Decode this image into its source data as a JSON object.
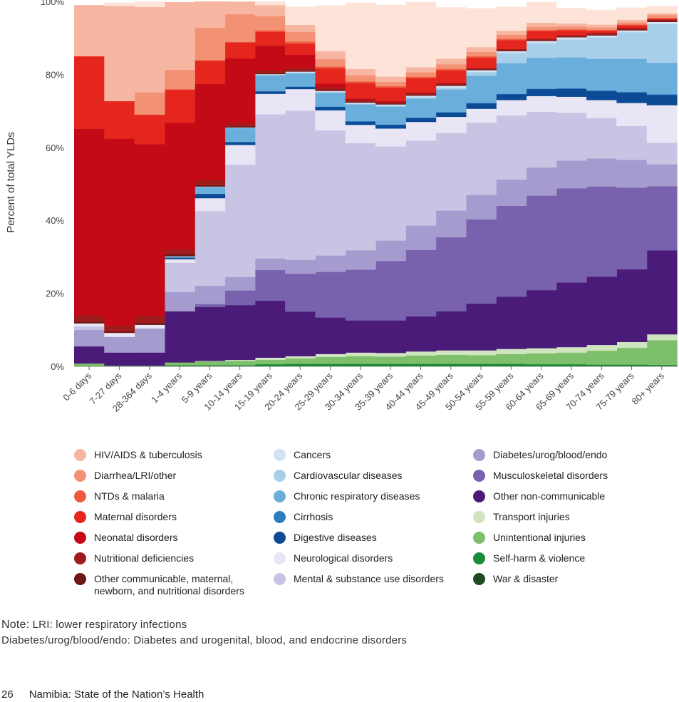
{
  "chart_data": {
    "type": "area",
    "ylabel": "Percent of total YLDs",
    "ylim": [
      0,
      100
    ],
    "yticks": [
      0,
      20,
      40,
      60,
      80,
      100
    ],
    "ytick_labels": [
      "0%",
      "20%",
      "40%",
      "60%",
      "80%",
      "100%"
    ],
    "categories": [
      "0-6 days",
      "7-27 days",
      "28-364 days",
      "1-4 years",
      "5-9 years",
      "10-14 years",
      "15-19 years",
      "20-24 years",
      "25-29 years",
      "30-34 years",
      "35-39 years",
      "40-44 years",
      "45-49 years",
      "50-54 years",
      "55-59 years",
      "60-64 years",
      "65-69 years",
      "70-74 years",
      "75-79 years",
      "80+ years"
    ],
    "series": [
      {
        "name": "War & disaster",
        "color": "#1e4a21",
        "values": [
          0.1,
          0.1,
          0.1,
          0.1,
          0.1,
          0.1,
          0.1,
          0.1,
          0.1,
          0.1,
          0.1,
          0.1,
          0.1,
          0.1,
          0.1,
          0.1,
          0.1,
          0.1,
          0.1,
          0.1
        ]
      },
      {
        "name": "Self-harm & violence",
        "color": "#1d8c3a",
        "values": [
          0,
          0,
          0,
          0.2,
          0.2,
          0.2,
          0.5,
          0.6,
          0.6,
          0.6,
          0.6,
          0.6,
          0.6,
          0.6,
          0.6,
          0.5,
          0.5,
          0.4,
          0.4,
          0.3
        ]
      },
      {
        "name": "Unintentional injuries",
        "color": "#7dbf6a",
        "values": [
          0.7,
          0.1,
          0.1,
          0.8,
          1.1,
          1.2,
          1.2,
          1.5,
          1.9,
          2.1,
          2.0,
          2.3,
          2.5,
          2.4,
          2.7,
          3.0,
          3.2,
          3.8,
          4.6,
          6.8
        ]
      },
      {
        "name": "Transport injuries",
        "color": "#cfe5c0",
        "values": [
          0,
          0,
          0,
          0,
          0.1,
          0.3,
          0.6,
          0.6,
          0.8,
          1.0,
          1.0,
          1.1,
          1.2,
          1.3,
          1.4,
          1.4,
          1.5,
          1.6,
          1.6,
          1.6
        ]
      },
      {
        "name": "Other non-communicable",
        "color": "#4b1b7a",
        "values": [
          4.7,
          3.6,
          3.6,
          14.0,
          14.8,
          15.0,
          15.6,
          12.2,
          10.0,
          8.8,
          8.9,
          9.6,
          10.7,
          12.8,
          14.3,
          15.9,
          17.7,
          18.7,
          19.9,
          23.0
        ]
      },
      {
        "name": "Musculoskeletal disorders",
        "color": "#7862ad",
        "values": [
          0,
          0,
          0,
          0,
          0.8,
          4.0,
          8.4,
          10.4,
          12.5,
          13.9,
          16.3,
          18.2,
          20.3,
          23.1,
          24.9,
          25.9,
          25.8,
          24.7,
          22.4,
          17.6
        ]
      },
      {
        "name": "Diabetes/urog/blood/endo",
        "color": "#a59bcf",
        "values": [
          4.5,
          4.3,
          6.6,
          5.3,
          5.0,
          3.7,
          3.2,
          3.8,
          4.5,
          5.3,
          5.6,
          6.7,
          7.3,
          6.7,
          7.2,
          7.7,
          7.6,
          7.7,
          7.6,
          6.0
        ]
      },
      {
        "name": "Mental & substance use disorders",
        "color": "#c8c4e4",
        "values": [
          1.0,
          0,
          0,
          8.0,
          20.5,
          30.8,
          39.5,
          40.9,
          34.3,
          29.4,
          25.8,
          23.3,
          21.3,
          19.8,
          17.6,
          15.3,
          13.1,
          11.1,
          9.3,
          5.9
        ]
      },
      {
        "name": "Neurological disorders",
        "color": "#e8e6f4",
        "values": [
          0.8,
          1.1,
          1.0,
          1.0,
          3.5,
          5.4,
          5.6,
          5.9,
          5.5,
          5.0,
          4.9,
          5.1,
          4.4,
          3.8,
          4.2,
          4.3,
          4.4,
          4.9,
          6.3,
          10.3
        ]
      },
      {
        "name": "Digestive diseases",
        "color": "#0d4a96",
        "values": [
          0,
          0,
          0,
          0.4,
          1.2,
          0.8,
          0.7,
          0.6,
          0.9,
          0.9,
          1.0,
          1.1,
          1.2,
          1.5,
          1.6,
          1.9,
          2.2,
          2.5,
          2.9,
          2.8
        ]
      },
      {
        "name": "Cirrhosis",
        "color": "#2a7ec0",
        "values": [
          0,
          0,
          0,
          0,
          0,
          0,
          0,
          0.1,
          0.1,
          0.1,
          0.1,
          0.1,
          0.1,
          0.1,
          0.1,
          0.1,
          0.1,
          0.1,
          0.1,
          0.2
        ]
      },
      {
        "name": "Chronic respiratory diseases",
        "color": "#6aaedb",
        "values": [
          0,
          0,
          0,
          0.3,
          1.9,
          3.9,
          4.4,
          3.6,
          3.8,
          4.6,
          4.9,
          5.2,
          6.2,
          7.5,
          8.4,
          8.5,
          8.5,
          8.7,
          9.1,
          8.6
        ]
      },
      {
        "name": "Cardiovascular diseases",
        "color": "#a7cfea",
        "values": [
          0,
          0,
          0,
          0,
          0,
          0,
          0.1,
          0.2,
          0.2,
          0.2,
          0.3,
          0.4,
          0.5,
          1.0,
          2.8,
          4.0,
          4.9,
          5.9,
          7.3,
          10.6
        ]
      },
      {
        "name": "Cancers",
        "color": "#d2e4f4",
        "values": [
          0,
          0,
          0,
          0.1,
          0.1,
          0.1,
          0.2,
          0.3,
          0.3,
          0.3,
          0.3,
          0.4,
          0.5,
          0.5,
          0.5,
          0.6,
          0.6,
          0.5,
          0.5,
          0.6
        ]
      },
      {
        "name": "Other communicable, maternal, newborn, and nutritional disorders",
        "color": "#6e1717",
        "values": [
          0.5,
          0.4,
          0.5,
          0.5,
          0.4,
          0.3,
          0.2,
          0.2,
          0.2,
          0.2,
          0.2,
          0.2,
          0.2,
          0.2,
          0.2,
          0.2,
          0.2,
          0.2,
          0.2,
          0.2
        ]
      },
      {
        "name": "Nutritional deficiencies",
        "color": "#a01c1c",
        "values": [
          1.7,
          1.6,
          2.0,
          1.4,
          1.4,
          0.8,
          0.8,
          0.8,
          0.8,
          0.6,
          0.5,
          0.5,
          0.5,
          0.4,
          0.4,
          0.4,
          0.4,
          0.5,
          0.5,
          0.5
        ]
      },
      {
        "name": "Neonatal disorders",
        "color": "#c40a17",
        "values": [
          51.1,
          51.2,
          47.0,
          34.7,
          26.3,
          17.8,
          6.8,
          3.6,
          1.0,
          0.3,
          0.2,
          0.2,
          0.1,
          0,
          0,
          0,
          0,
          0,
          0,
          0
        ]
      },
      {
        "name": "Maternal disorders",
        "color": "#e5261e",
        "values": [
          19.9,
          10.3,
          8.1,
          9.1,
          6.4,
          4.4,
          3.8,
          3.0,
          4.2,
          4.3,
          3.7,
          3.9,
          3.4,
          2.8,
          2.4,
          2.1,
          1.3,
          0.6,
          0.7,
          0.2
        ]
      },
      {
        "name": "NTDs & malaria",
        "color": "#ee5a3f",
        "values": [
          0,
          0,
          0,
          0,
          0.1,
          0.1,
          0.4,
          0.6,
          0.5,
          0.4,
          0.4,
          0.4,
          0.4,
          0.4,
          0.4,
          0.3,
          0.3,
          0.2,
          0.2,
          0.2
        ]
      },
      {
        "name": "Diarrhea/LRI/other",
        "color": "#f39174",
        "values": [
          0,
          0,
          6.1,
          5.4,
          8.9,
          7.6,
          3.9,
          2.7,
          2.0,
          1.7,
          1.2,
          1.2,
          1.3,
          1.2,
          1.1,
          0.9,
          0.8,
          0.7,
          0.6,
          0.8
        ]
      },
      {
        "name": "HIV/AIDS & tuberculosis",
        "color": "#f7b6a1",
        "values": [
          14.0,
          26.1,
          23.4,
          18.5,
          7.9,
          3.5,
          3.0,
          1.9,
          2.2,
          1.7,
          1.4,
          1.4,
          1.5,
          1.3,
          1.1,
          1.1,
          0.8,
          0.8,
          0.7,
          0.5
        ]
      },
      {
        "name": "HIV/AIDS & tuberculosis",
        "color": "#fde3d8",
        "values": [
          0,
          0.9,
          1.5,
          0,
          0,
          1.6,
          1.7,
          4.9,
          12.5,
          18.2,
          19.7,
          17.8,
          14.1,
          10.6,
          6.5,
          5.6,
          4.2,
          4.0,
          3.3,
          1.9
        ]
      }
    ]
  },
  "legend": [
    {
      "label": "HIV/AIDS & tuberculosis",
      "color": "#f7b6a1"
    },
    {
      "label": "Cancers",
      "color": "#d2e4f4"
    },
    {
      "label": "Diabetes/urog/blood/endo",
      "color": "#a59bcf"
    },
    {
      "label": "Diarrhea/LRI/other",
      "color": "#f39174"
    },
    {
      "label": "Cardiovascular diseases",
      "color": "#a7cfea"
    },
    {
      "label": "Musculoskeletal disorders",
      "color": "#7862ad"
    },
    {
      "label": "NTDs & malaria",
      "color": "#ee5a3f"
    },
    {
      "label": "Chronic respiratory diseases",
      "color": "#6aaedb"
    },
    {
      "label": "Other non-communicable",
      "color": "#4b1b7a"
    },
    {
      "label": "Maternal disorders",
      "color": "#e5261e"
    },
    {
      "label": "Cirrhosis",
      "color": "#2a7ec0"
    },
    {
      "label": "Transport injuries",
      "color": "#cfe5c0"
    },
    {
      "label": "Neonatal disorders",
      "color": "#c40a17"
    },
    {
      "label": "Digestive diseases",
      "color": "#0d4a96"
    },
    {
      "label": "Unintentional injuries",
      "color": "#7dbf6a"
    },
    {
      "label": "Nutritional deficiencies",
      "color": "#a01c1c"
    },
    {
      "label": "Neurological disorders",
      "color": "#e8e6f4"
    },
    {
      "label": "Self-harm & violence",
      "color": "#1d8c3a"
    },
    {
      "label": "Other communicable, maternal, newborn, and nutritional disorders",
      "color": "#6e1717"
    },
    {
      "label": "Mental & substance use disorders",
      "color": "#c8c4e4"
    },
    {
      "label": "War & disaster",
      "color": "#1e4a21"
    }
  ],
  "notes": {
    "head": "Note:",
    "line1": "LRI: lower respiratory infections",
    "line2": "Diabetes/urog/blood/endo: Diabetes and urogenital, blood, and endocrine disorders"
  },
  "footer": {
    "page_number": "26",
    "title": "Namibia: State of the Nation’s Health"
  }
}
